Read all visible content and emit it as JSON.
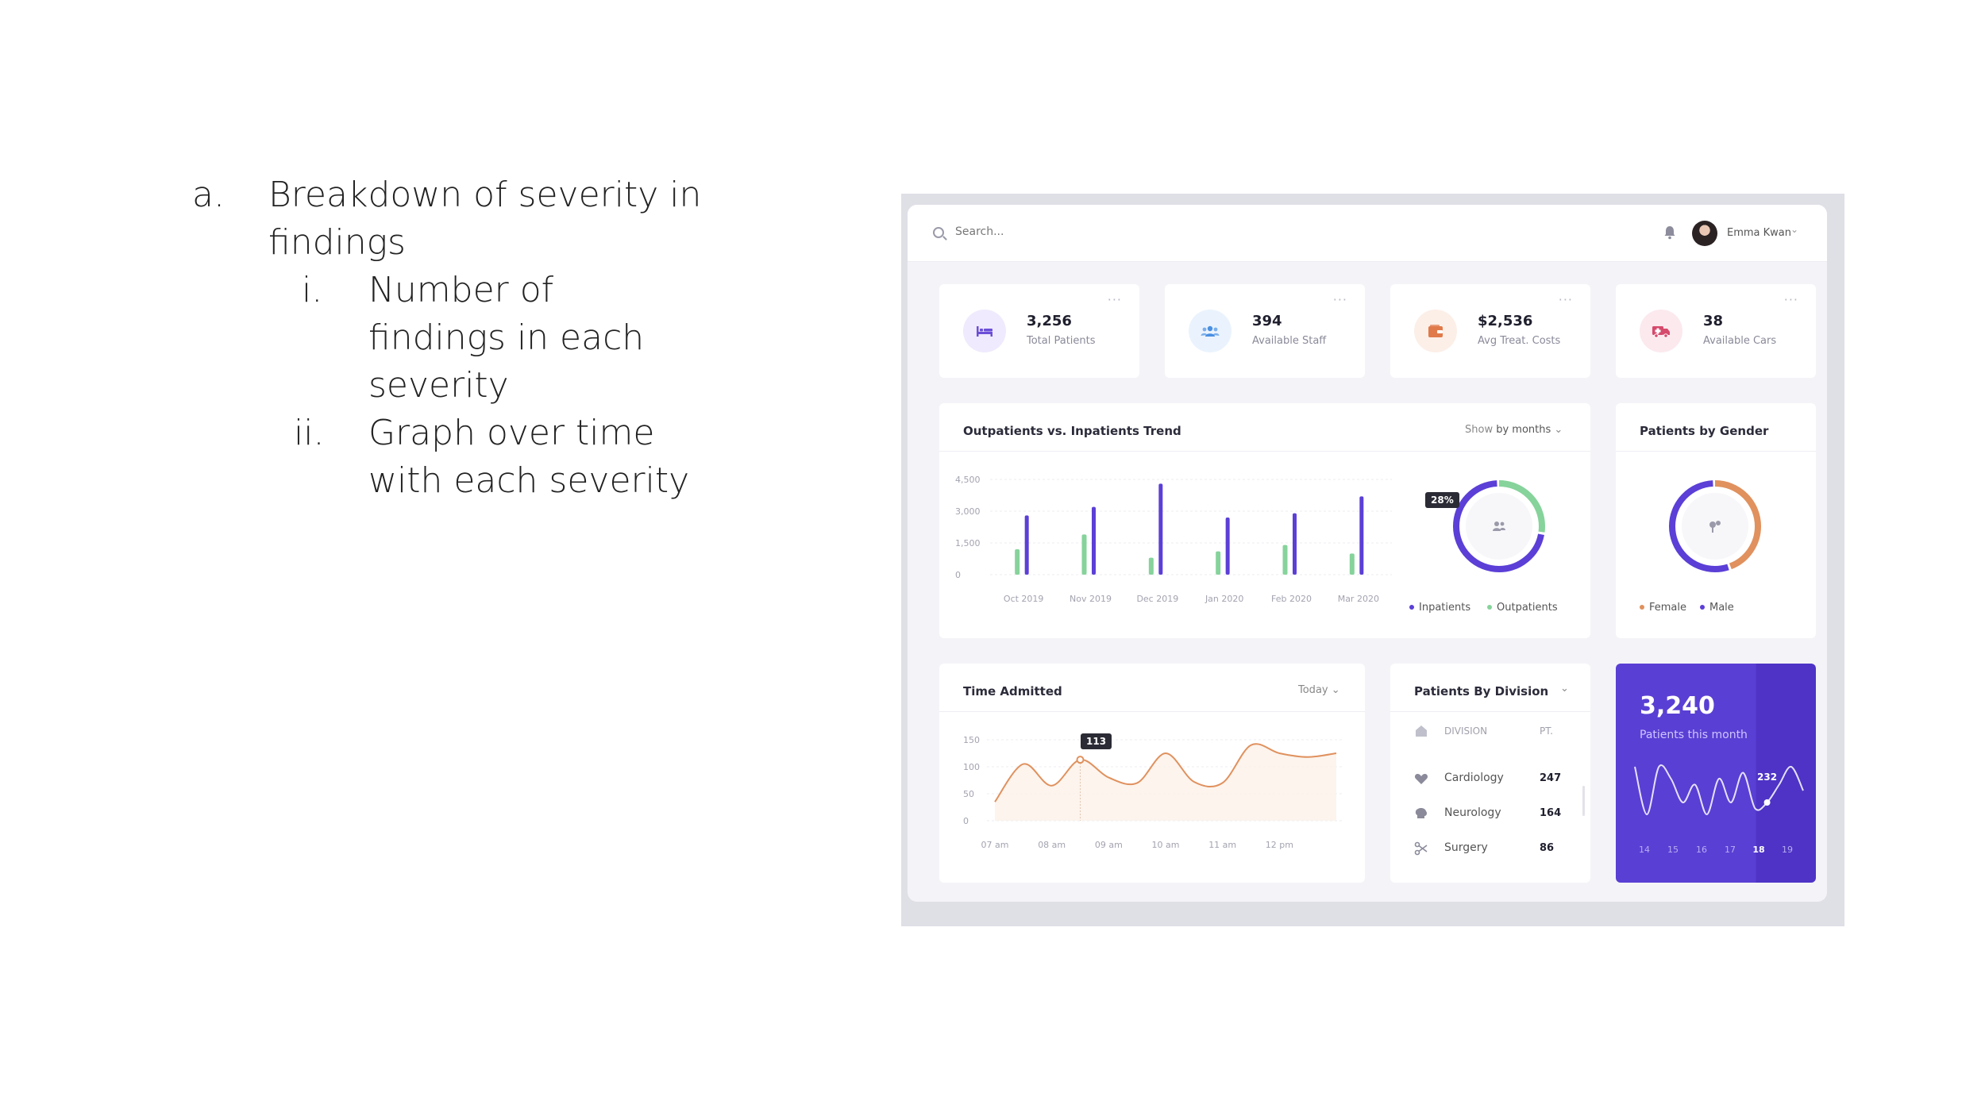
{
  "outline": {
    "item_a": {
      "marker": "a.",
      "text_line1": "Breakdown of severity in",
      "text_line2": "findings"
    },
    "item_i": {
      "marker": "i.",
      "line1": "Number of",
      "line2": "findings in each",
      "line3": "severity"
    },
    "item_ii": {
      "marker": "ii.",
      "line1": "Graph over time",
      "line2": "with each severity"
    }
  },
  "topbar": {
    "search_placeholder": "Search...",
    "user_name": "Emma Kwan"
  },
  "stats": [
    {
      "value": "3,256",
      "label": "Total Patients",
      "icon": "bed-icon",
      "color": "#6b4fd8",
      "bg": "#efeafd"
    },
    {
      "value": "394",
      "label": "Available Staff",
      "icon": "staff-icon",
      "color": "#4a90e2",
      "bg": "#eaf3fd"
    },
    {
      "value": "$2,536",
      "label": "Avg Treat. Costs",
      "icon": "wallet-icon",
      "color": "#e07a4a",
      "bg": "#fcefe8"
    },
    {
      "value": "38",
      "label": "Available Cars",
      "icon": "ambulance-icon",
      "color": "#d64a6c",
      "bg": "#fbe9ee"
    }
  ],
  "trend": {
    "title": "Outpatients vs. Inpatients Trend",
    "control_prefix": "Show",
    "control_value": "by months",
    "donut_percent_label": "28%",
    "legend_inpatients": "Inpatients",
    "legend_outpatients": "Outpatients"
  },
  "gender": {
    "title": "Patients by Gender",
    "legend_female": "Female",
    "legend_male": "Male"
  },
  "time_admitted": {
    "title": "Time Admitted",
    "control": "Today",
    "tooltip": "113"
  },
  "division": {
    "title": "Patients By Division",
    "col_division": "DIVISION",
    "col_pt": "PT.",
    "rows": [
      {
        "label": "Cardiology",
        "value": "247",
        "icon": "heart-icon"
      },
      {
        "label": "Neurology",
        "value": "164",
        "icon": "brain-icon"
      },
      {
        "label": "Surgery",
        "value": "86",
        "icon": "scissors-icon"
      }
    ]
  },
  "month_card": {
    "value": "3,240",
    "label": "Patients this month",
    "tooltip": "232"
  },
  "colors": {
    "purple": "#5b3fd6",
    "green": "#86d39b",
    "orange": "#e0915e"
  },
  "chart_data": [
    {
      "type": "bar",
      "title": "Outpatients vs. Inpatients Trend",
      "categories": [
        "Oct 2019",
        "Nov 2019",
        "Dec 2019",
        "Jan 2020",
        "Feb 2020",
        "Mar 2020"
      ],
      "y_ticks": [
        "4,500",
        "3,000",
        "1,500",
        "0"
      ],
      "ylim": [
        0,
        4500
      ],
      "series": [
        {
          "name": "Outpatients",
          "color": "#86d39b",
          "values": [
            1200,
            1900,
            800,
            1100,
            1400,
            1000
          ]
        },
        {
          "name": "Inpatients",
          "color": "#5b3fd6",
          "values": [
            2800,
            3200,
            4300,
            2700,
            2900,
            3700
          ]
        }
      ]
    },
    {
      "type": "pie",
      "title": "Outpatients vs. Inpatients Trend",
      "slices": [
        {
          "name": "Outpatients",
          "value": 28,
          "color": "#86d39b"
        },
        {
          "name": "Inpatients",
          "value": 72,
          "color": "#5b3fd6"
        }
      ]
    },
    {
      "type": "pie",
      "title": "Patients by Gender",
      "slices": [
        {
          "name": "Female",
          "value": 45,
          "color": "#e0915e"
        },
        {
          "name": "Male",
          "value": 55,
          "color": "#5b3fd6"
        }
      ]
    },
    {
      "type": "line",
      "title": "Time Admitted",
      "x_ticks": [
        "07 am",
        "08 am",
        "09 am",
        "10 am",
        "11 am",
        "12 pm"
      ],
      "y_ticks": [
        "150",
        "100",
        "50",
        "0"
      ],
      "ylim": [
        0,
        150
      ],
      "x": [
        0,
        0.5,
        1,
        1.5,
        2,
        2.5,
        3,
        3.5,
        4,
        4.5,
        5,
        5.5,
        6
      ],
      "values": [
        35,
        105,
        65,
        113,
        80,
        70,
        125,
        72,
        70,
        140,
        125,
        118,
        125
      ],
      "highlight_index": 3
    },
    {
      "type": "line",
      "title": "Patients this month",
      "x_ticks": [
        "14",
        "15",
        "16",
        "17",
        "18",
        "19"
      ],
      "values": [
        60,
        20,
        60,
        50,
        30,
        45,
        20,
        50,
        30,
        55,
        25,
        30,
        45,
        60,
        40
      ],
      "highlight_label": "232"
    }
  ]
}
